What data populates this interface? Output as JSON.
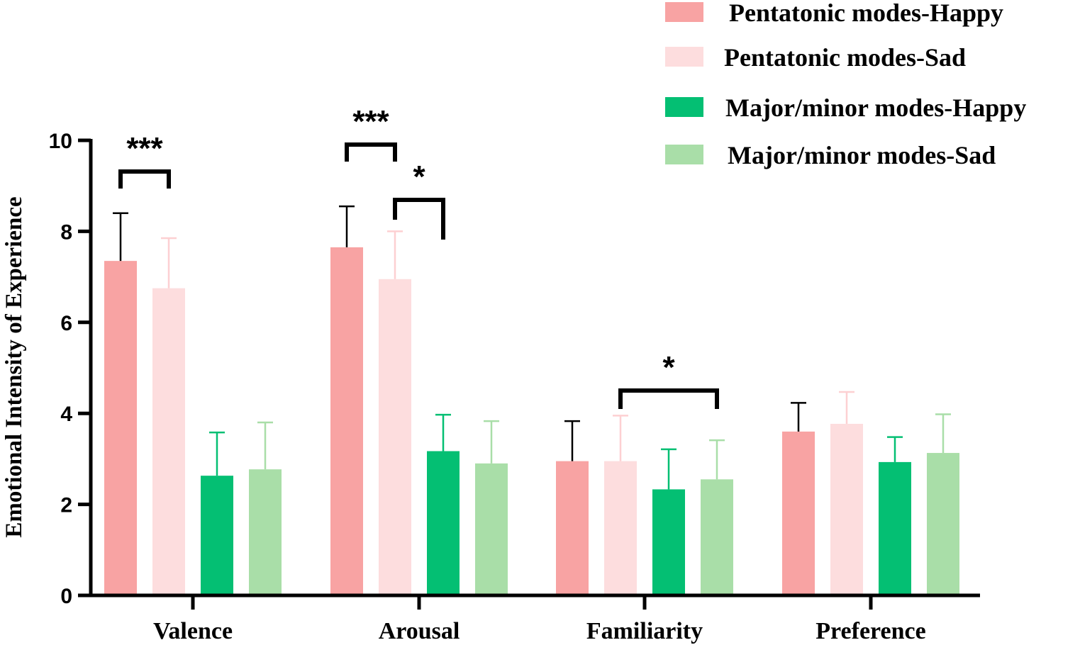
{
  "chart_data": {
    "type": "bar",
    "title": "",
    "xlabel": "",
    "ylabel": "Emotional Intensity of Experience",
    "ylim": [
      0,
      10
    ],
    "yticks": [
      "0",
      "2",
      "4",
      "6",
      "8",
      "10"
    ],
    "categories": [
      "Valence",
      "Arousal",
      "Familiarity",
      "Preference"
    ],
    "series": [
      {
        "name": "Pentatonic modes-Happy",
        "color": "#f8a3a3",
        "errColor": "#000000",
        "values": [
          7.35,
          7.65,
          2.95,
          3.6
        ],
        "errors": [
          1.05,
          0.9,
          0.88,
          0.63
        ]
      },
      {
        "name": "Pentatonic modes-Sad",
        "color": "#fdddde",
        "errColor": "#fdd0d2",
        "values": [
          6.75,
          6.95,
          2.95,
          3.77
        ],
        "errors": [
          1.1,
          1.05,
          1.0,
          0.7
        ]
      },
      {
        "name": "Major/minor modes-Happy",
        "color": "#04bf73",
        "errColor": "#04bf73",
        "values": [
          2.63,
          3.17,
          2.33,
          2.93
        ],
        "errors": [
          0.95,
          0.8,
          0.88,
          0.55
        ]
      },
      {
        "name": "Major/minor modes-Sad",
        "color": "#a9dea8",
        "errColor": "#a9dea8",
        "values": [
          2.77,
          2.9,
          2.55,
          3.13
        ],
        "errors": [
          1.03,
          0.93,
          0.86,
          0.85
        ]
      }
    ],
    "significance": [
      {
        "category": 0,
        "from": 0,
        "to": 1,
        "label": "***"
      },
      {
        "category": 1,
        "from": 0,
        "to": 1,
        "label": "***"
      },
      {
        "category": 1,
        "from": 1,
        "to": 2,
        "label": "*"
      },
      {
        "category": 2,
        "from": 1,
        "to": 3,
        "label": "*"
      }
    ],
    "legend_position": "top-right"
  }
}
